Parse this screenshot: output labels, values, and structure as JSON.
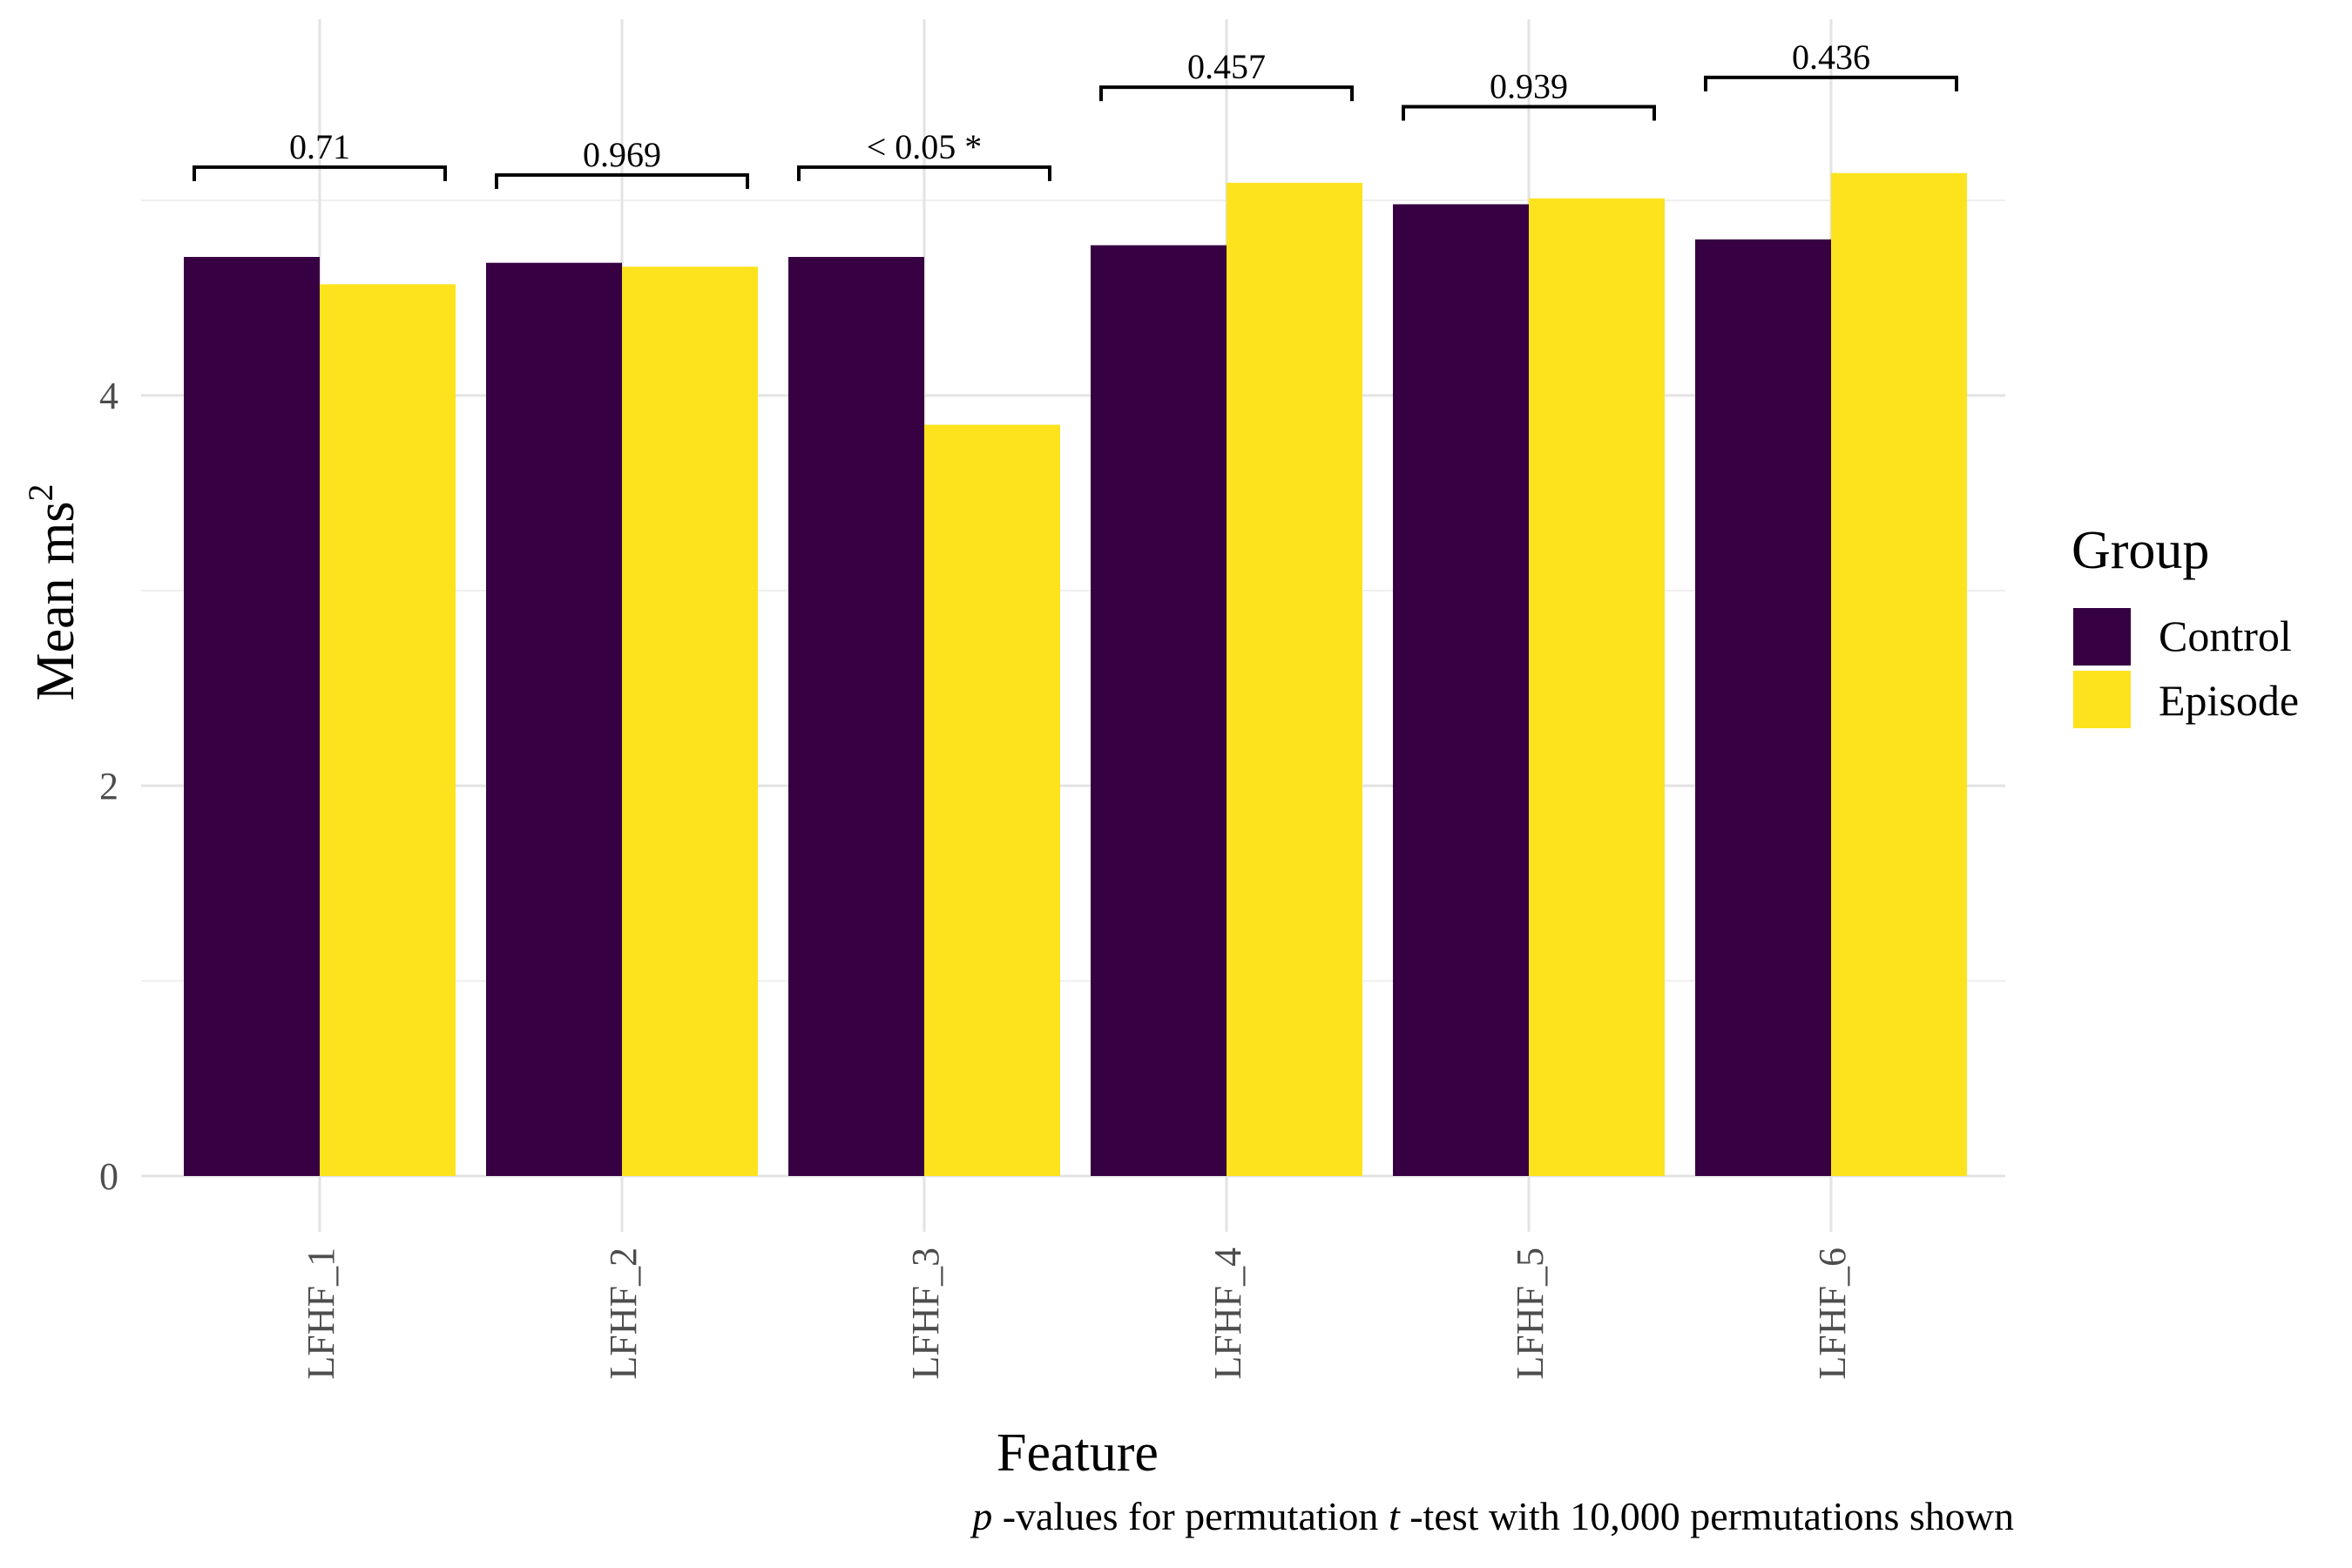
{
  "chart_data": {
    "type": "bar",
    "categories": [
      "LFHF_1",
      "LFHF_2",
      "LFHF_3",
      "LFHF_4",
      "LFHF_5",
      "LFHF_6"
    ],
    "series": [
      {
        "name": "Control",
        "color": "#360042",
        "values": [
          4.71,
          4.68,
          4.71,
          4.77,
          4.98,
          4.8
        ]
      },
      {
        "name": "Episode",
        "color": "#FCE31E",
        "values": [
          4.57,
          4.66,
          3.85,
          5.09,
          5.01,
          5.14
        ]
      }
    ],
    "p_values": [
      "0.71",
      "0.969",
      "< 0.05 *",
      "0.457",
      "0.939",
      "0.436"
    ],
    "p_bracket_y": [
      5.17,
      5.13,
      5.17,
      5.58,
      5.48,
      5.63
    ],
    "xlabel": "Feature",
    "ylabel": "Mean ms",
    "ylabel_superscript": "2",
    "ylim": [
      0,
      5.95
    ],
    "yticks": [
      0,
      2,
      4
    ],
    "grid": true,
    "legend": {
      "title": "Group",
      "position": "right"
    },
    "caption": {
      "p_italic": "p",
      "part1": " -values for permutation ",
      "t_italic": "t",
      "part2": " -test with 10,000 permutations shown"
    }
  }
}
